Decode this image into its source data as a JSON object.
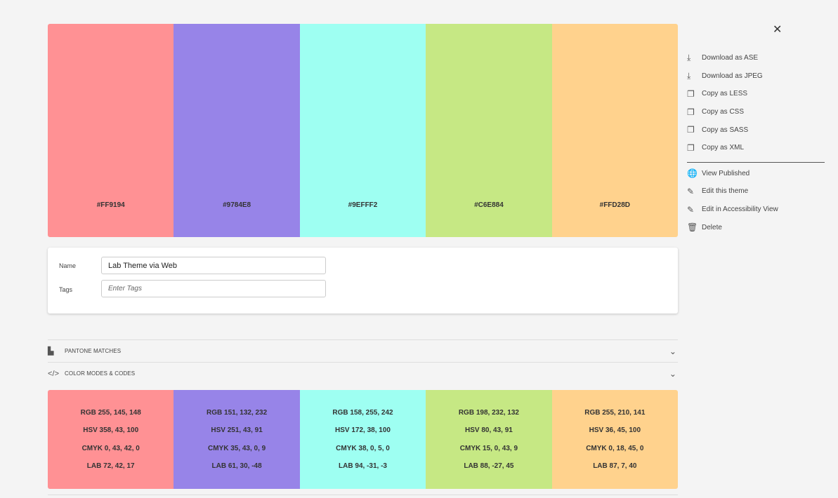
{
  "swatches": [
    {
      "hex": "#FF9194",
      "color": "#FF9194",
      "rgb": "RGB 255, 145, 148",
      "hsv": "HSV 358, 43, 100",
      "cmyk": "CMYK 0, 43, 42, 0",
      "lab": "LAB 72, 42, 17"
    },
    {
      "hex": "#9784E8",
      "color": "#9784E8",
      "rgb": "RGB 151, 132, 232",
      "hsv": "HSV 251, 43, 91",
      "cmyk": "CMYK 35, 43, 0, 9",
      "lab": "LAB 61, 30, -48"
    },
    {
      "hex": "#9EFFF2",
      "color": "#9EFFF2",
      "rgb": "RGB 158, 255, 242",
      "hsv": "HSV 172, 38, 100",
      "cmyk": "CMYK 38, 0, 5, 0",
      "lab": "LAB 94, -31, -3"
    },
    {
      "hex": "#C6E884",
      "color": "#C6E884",
      "rgb": "RGB 198, 232, 132",
      "hsv": "HSV 80, 43, 91",
      "cmyk": "CMYK 15, 0, 43, 9",
      "lab": "LAB 88, -27, 45"
    },
    {
      "hex": "#FFD28D",
      "color": "#FFD28D",
      "rgb": "RGB 255, 210, 141",
      "hsv": "HSV 36, 45, 100",
      "cmyk": "CMYK 0, 18, 45, 0",
      "lab": "LAB 87, 7, 40"
    }
  ],
  "form": {
    "name_label": "Name",
    "name_value": "Lab Theme via Web",
    "tags_label": "Tags",
    "tags_placeholder": "Enter Tags"
  },
  "sections": {
    "pantone": "PANTONE MATCHES",
    "codes": "COLOR MODES & CODES"
  },
  "menu": {
    "group1": [
      {
        "icon": "download-icon",
        "label": "Download as ASE"
      },
      {
        "icon": "download-icon",
        "label": "Download as JPEG"
      },
      {
        "icon": "copy-icon",
        "label": "Copy as LESS"
      },
      {
        "icon": "copy-icon",
        "label": "Copy as CSS"
      },
      {
        "icon": "copy-icon",
        "label": "Copy as SASS"
      },
      {
        "icon": "copy-icon",
        "label": "Copy as XML"
      }
    ],
    "group2": [
      {
        "icon": "globe-icon",
        "label": "View Published"
      },
      {
        "icon": "edit-icon",
        "label": "Edit this theme"
      },
      {
        "icon": "edit-icon",
        "label": "Edit in Accessibility View"
      },
      {
        "icon": "trash-icon",
        "label": "Delete"
      }
    ]
  }
}
